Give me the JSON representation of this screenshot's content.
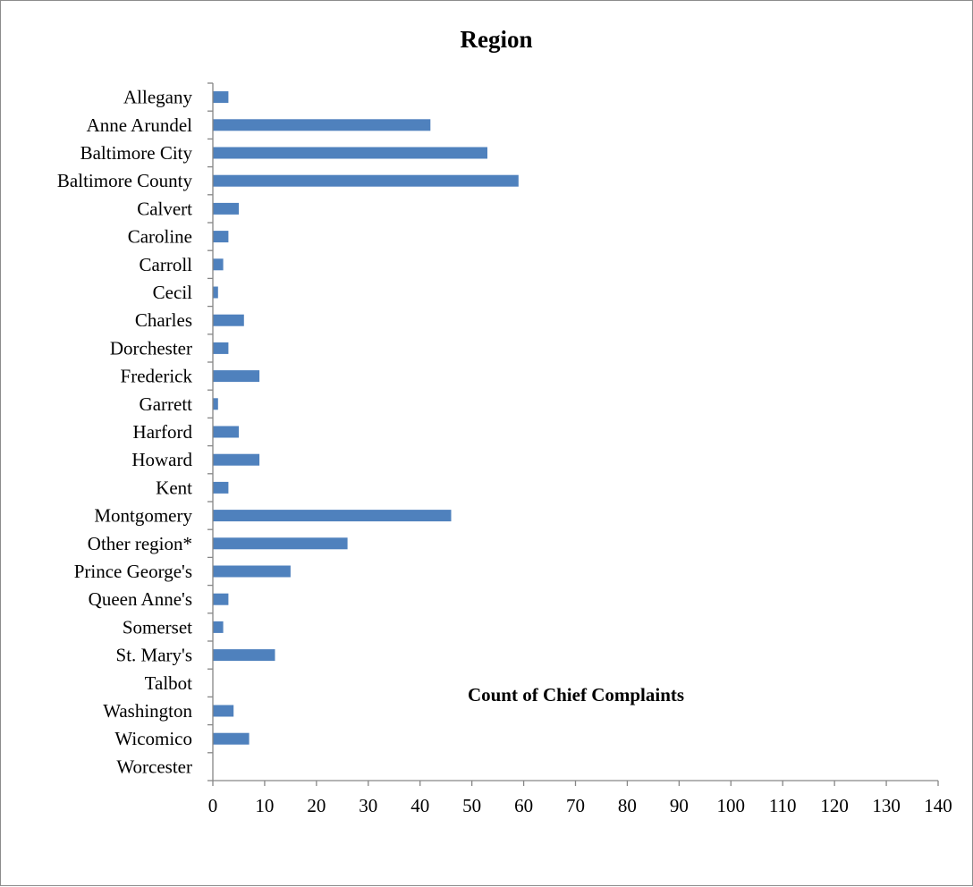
{
  "chart_data": {
    "type": "bar",
    "orientation": "horizontal",
    "title": "Region",
    "xlabel": "Count of Chief Complaints",
    "ylabel": "",
    "xlim": [
      0,
      140
    ],
    "x_ticks": [
      0,
      10,
      20,
      30,
      40,
      50,
      60,
      70,
      80,
      90,
      100,
      110,
      120,
      130,
      140
    ],
    "grid": false,
    "legend": "none",
    "bar_color": "#4f81bd",
    "categories": [
      "Allegany",
      "Anne Arundel",
      "Baltimore City",
      "Baltimore County",
      "Calvert",
      "Caroline",
      "Carroll",
      "Cecil",
      "Charles",
      "Dorchester",
      "Frederick",
      "Garrett",
      "Harford",
      "Howard",
      "Kent",
      "Montgomery",
      "Other region*",
      "Prince George's",
      "Queen Anne's",
      "Somerset",
      "St. Mary's",
      "Talbot",
      "Washington",
      "Wicomico",
      "Worcester"
    ],
    "values": [
      3,
      42,
      53,
      59,
      5,
      3,
      2,
      1,
      6,
      3,
      9,
      1,
      5,
      9,
      3,
      46,
      26,
      15,
      3,
      2,
      12,
      0,
      4,
      7,
      0
    ]
  }
}
